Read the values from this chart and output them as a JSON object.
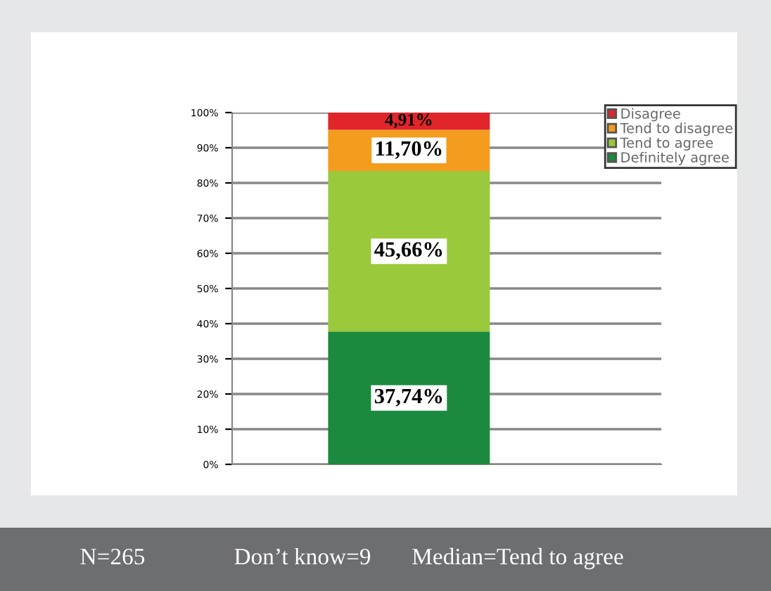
{
  "chart_data": {
    "type": "bar",
    "stacked": true,
    "categories": [
      null
    ],
    "series": [
      {
        "name": "Definitely agree",
        "color": "#1b8a3e",
        "values": [
          37.74
        ],
        "value_labels": [
          "37,74%"
        ]
      },
      {
        "name": "Tend to agree",
        "color": "#9bc93c",
        "values": [
          45.66
        ],
        "value_labels": [
          "45,66%"
        ]
      },
      {
        "name": "Tend to disagree",
        "color": "#f39c1d",
        "values": [
          11.7
        ],
        "value_labels": [
          "11,70%"
        ]
      },
      {
        "name": "Disagree",
        "color": "#e0262a",
        "values": [
          4.91
        ],
        "value_labels": [
          "4,91%"
        ]
      }
    ],
    "ylim": [
      0,
      100
    ],
    "yticks": [
      {
        "value": 0,
        "label": "0%"
      },
      {
        "value": 10,
        "label": "10%"
      },
      {
        "value": 20,
        "label": "20%"
      },
      {
        "value": 30,
        "label": "30%"
      },
      {
        "value": 40,
        "label": "40%"
      },
      {
        "value": 50,
        "label": "50%"
      },
      {
        "value": 60,
        "label": "60%"
      },
      {
        "value": 70,
        "label": "70%"
      },
      {
        "value": 80,
        "label": "80%"
      },
      {
        "value": 90,
        "label": "90%"
      },
      {
        "value": 100,
        "label": "100%"
      }
    ],
    "grid": "y",
    "legend": "top right",
    "annotations": [
      "N=265",
      "Don’t know=9",
      "Median=Tend to agree"
    ]
  }
}
